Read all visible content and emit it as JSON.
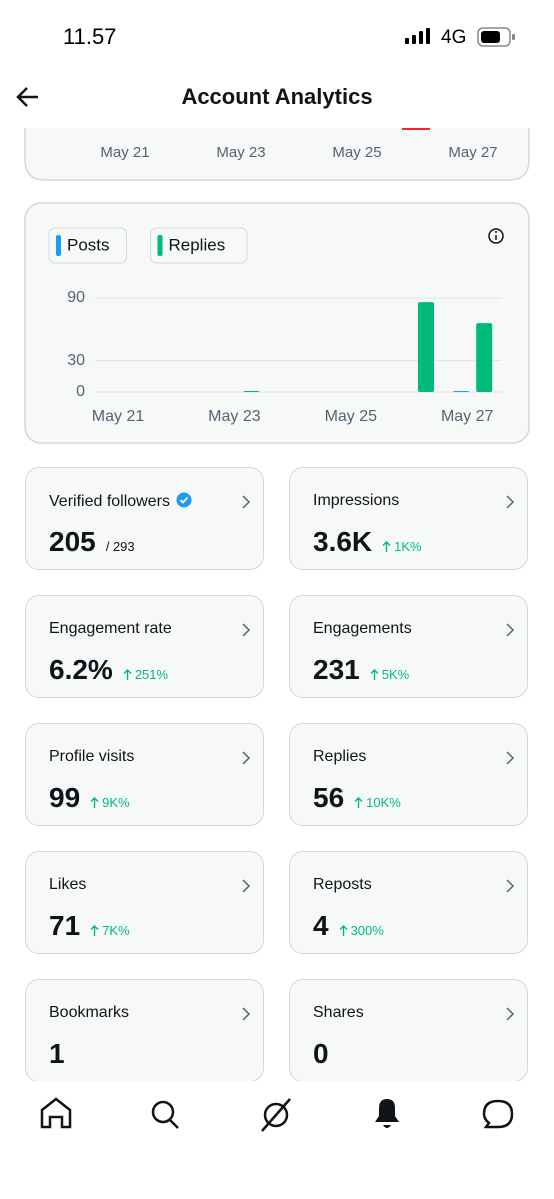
{
  "status_bar": {
    "time": "11.57",
    "network": "4G"
  },
  "header": {
    "title": "Account Analytics"
  },
  "top_chart": {
    "categories": [
      "May 21",
      "May 23",
      "May 25",
      "May 27"
    ]
  },
  "chart_data": {
    "type": "bar",
    "categories": [
      "May 21",
      null,
      "May 23",
      null,
      "May 25",
      null,
      "May 27"
    ],
    "series": [
      {
        "name": "Posts",
        "color": "#1d9bf0",
        "values": [
          0,
          0,
          0,
          0,
          0,
          0,
          1
        ]
      },
      {
        "name": "Replies",
        "color": "#00ba7c",
        "values": [
          0,
          0,
          1,
          0,
          0,
          86,
          66
        ]
      }
    ],
    "ylim": [
      0,
      90
    ],
    "yticks": [
      0,
      30,
      90
    ],
    "grid": true
  },
  "cards": [
    {
      "label": "Verified followers",
      "value": "205",
      "total": "/ 293"
    },
    {
      "label": "Impressions",
      "value": "3.6K",
      "change": "1K%"
    },
    {
      "label": "Engagement rate",
      "value": "6.2%",
      "change": "251%"
    },
    {
      "label": "Engagements",
      "value": "231",
      "change": "5K%"
    },
    {
      "label": "Profile visits",
      "value": "99",
      "change": "9K%"
    },
    {
      "label": "Replies",
      "value": "56",
      "change": "10K%"
    },
    {
      "label": "Likes",
      "value": "71",
      "change": "7K%"
    },
    {
      "label": "Reposts",
      "value": "4",
      "change": "300%"
    },
    {
      "label": "Bookmarks",
      "value": "1"
    },
    {
      "label": "Shares",
      "value": "0"
    }
  ]
}
